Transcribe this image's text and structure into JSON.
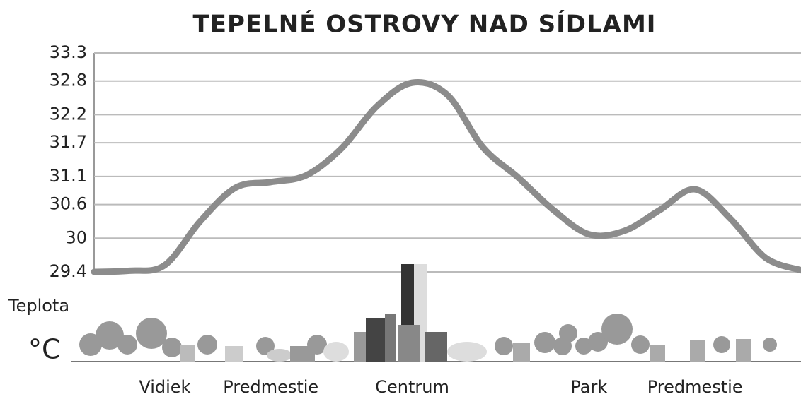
{
  "chart_data": {
    "type": "line",
    "title": "TEPELNÉ OSTROVY NAD SÍDLAMI",
    "ylabel": "Teplota",
    "yunit": "°C",
    "categories": [
      null,
      null,
      "Vidiek",
      null,
      null,
      "Predmestie",
      null,
      null,
      null,
      "Centrum",
      null,
      null,
      null,
      null,
      "Park",
      null,
      null,
      "Predmestie",
      null,
      null,
      null
    ],
    "series": [
      {
        "name": "Teplota",
        "color": "#8c8c8c",
        "values": [
          29.4,
          29.42,
          29.52,
          30.3,
          30.9,
          31.0,
          31.12,
          31.6,
          32.35,
          32.77,
          32.55,
          31.62,
          31.08,
          30.5,
          30.07,
          30.13,
          30.5,
          30.87,
          30.35,
          29.65,
          29.43
        ]
      }
    ],
    "ylim": [
      29.4,
      33.3
    ],
    "yticks": [
      29.4,
      30.0,
      30.6,
      31.1,
      31.7,
      32.2,
      32.8,
      33.3
    ],
    "grid": true
  }
}
